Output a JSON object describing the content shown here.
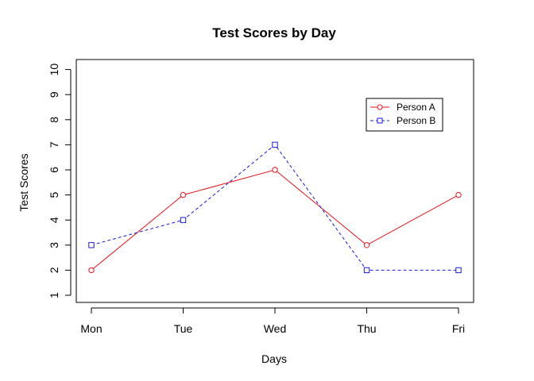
{
  "chart_data": {
    "type": "line",
    "title": "Test Scores by Day",
    "xlabel": "Days",
    "ylabel": "Test Scores",
    "categories": [
      "Mon",
      "Tue",
      "Wed",
      "Thu",
      "Fri"
    ],
    "ylim": [
      1,
      10
    ],
    "yticks": [
      "1",
      "2",
      "3",
      "4",
      "5",
      "6",
      "7",
      "8",
      "9",
      "10"
    ],
    "grid": false,
    "legend_position": "top-right",
    "series": [
      {
        "name": "Person A",
        "values": [
          2,
          5,
          6,
          3,
          5
        ],
        "color": "#e8141a",
        "line_style": "solid",
        "marker": "circle"
      },
      {
        "name": "Person B",
        "values": [
          3,
          4,
          7,
          2,
          2
        ],
        "color": "#1a1ae0",
        "line_style": "dashed",
        "marker": "square"
      }
    ]
  }
}
